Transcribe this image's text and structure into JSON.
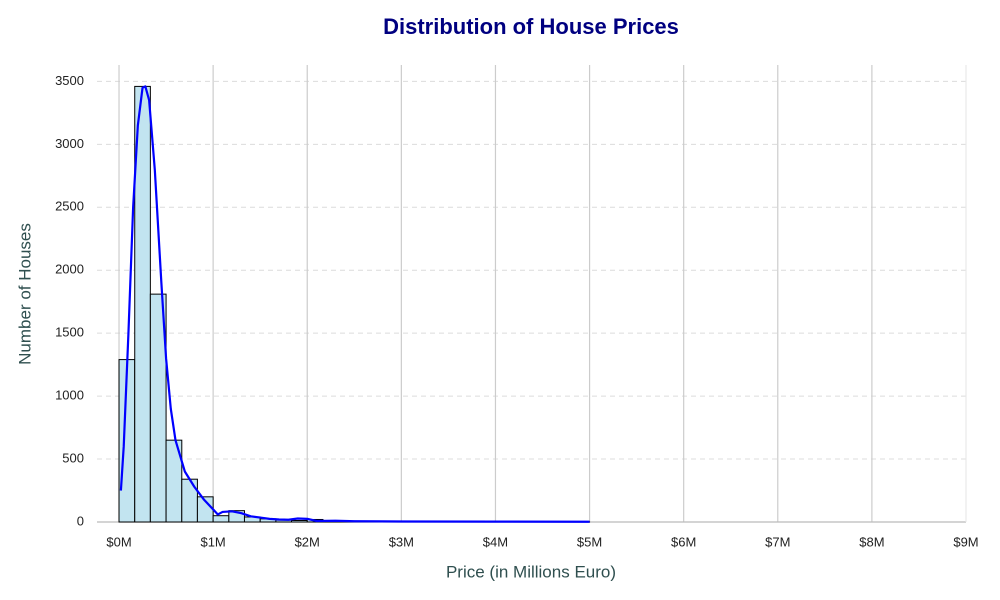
{
  "chart_data": {
    "type": "histogram",
    "title": "Distribution of House Prices",
    "x_label": "Price (in Millions Euro)",
    "y_label": "Number of Houses",
    "bins": [
      0,
      0.167,
      0.333,
      0.5,
      0.667,
      0.833,
      1,
      1.167,
      1.333,
      1.5,
      1.667,
      1.833,
      2,
      2.167,
      2.333,
      2.5,
      2.667,
      2.833,
      3,
      3.167,
      3.333,
      3.5,
      3.667,
      3.833,
      4,
      4.167,
      4.333,
      4.5,
      4.667,
      4.833,
      5
    ],
    "values": [
      1290,
      3460,
      1810,
      650,
      340,
      200,
      50,
      90,
      40,
      25,
      15,
      12,
      20,
      8,
      5,
      4,
      3,
      3,
      2,
      2,
      1,
      1,
      2,
      1,
      1,
      0,
      1,
      0,
      0,
      1
    ],
    "color": "#c2e4f0",
    "edge_color": "#000000",
    "kde": {
      "color": "#0000ff",
      "x": [
        0.02,
        0.05,
        0.1,
        0.15,
        0.2,
        0.25,
        0.28,
        0.32,
        0.38,
        0.45,
        0.5,
        0.55,
        0.6,
        0.7,
        0.8,
        0.9,
        1.0,
        1.05,
        1.1,
        1.2,
        1.3,
        1.4,
        1.5,
        1.6,
        1.7,
        1.8,
        1.9,
        2.0,
        2.1,
        2.3,
        2.5,
        3,
        4,
        5
      ],
      "values": [
        250,
        600,
        1500,
        2500,
        3150,
        3450,
        3460,
        3350,
        2800,
        1900,
        1300,
        900,
        650,
        400,
        280,
        180,
        100,
        60,
        80,
        85,
        70,
        45,
        35,
        25,
        20,
        18,
        28,
        25,
        8,
        10,
        6,
        4,
        3,
        2
      ]
    },
    "xlim": [
      -0.234,
      9
    ],
    "ylim": [
      0,
      3630
    ],
    "xticks": [
      {
        "value": 0,
        "label": "$0M"
      },
      {
        "value": 1,
        "label": "$1M"
      },
      {
        "value": 2,
        "label": "$2M"
      },
      {
        "value": 3,
        "label": "$3M"
      },
      {
        "value": 4,
        "label": "$4M"
      },
      {
        "value": 5,
        "label": "$5M"
      },
      {
        "value": 6,
        "label": "$6M"
      },
      {
        "value": 7,
        "label": "$7M"
      },
      {
        "value": 8,
        "label": "$8M"
      },
      {
        "value": 9,
        "label": "$9M"
      }
    ],
    "yticks": [
      0,
      500,
      1000,
      1500,
      2000,
      2500,
      3000,
      3500
    ],
    "grid": true
  }
}
